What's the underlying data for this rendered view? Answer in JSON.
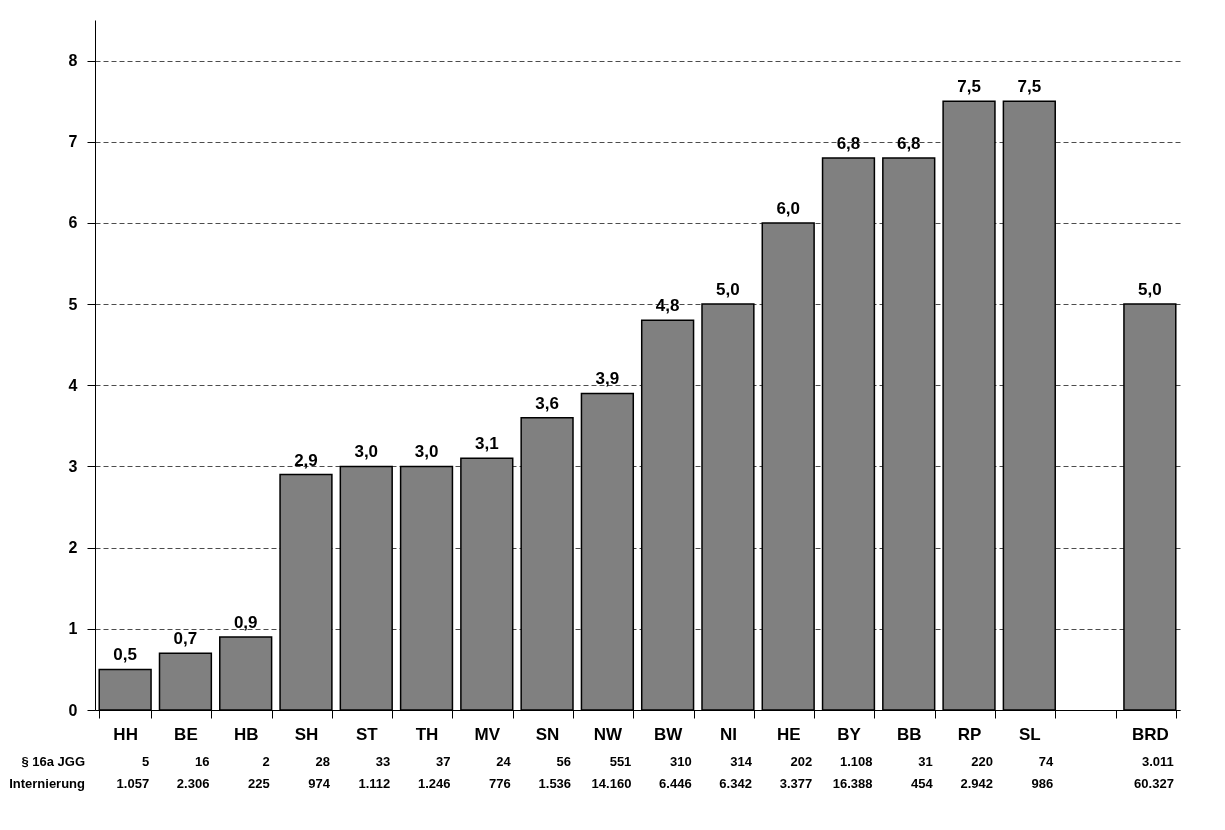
{
  "chart_data": {
    "type": "bar",
    "categories": [
      "HH",
      "BE",
      "HB",
      "SH",
      "ST",
      "TH",
      "MV",
      "SN",
      "NW",
      "BW",
      "NI",
      "HE",
      "BY",
      "BB",
      "RP",
      "SL",
      null,
      "BRD"
    ],
    "series": [
      {
        "color": "#808080",
        "values": [
          0.5,
          0.7,
          0.9,
          2.9,
          3.0,
          3.0,
          3.1,
          3.6,
          3.9,
          4.8,
          5.0,
          6.0,
          6.8,
          6.8,
          7.5,
          7.5,
          null,
          5.0
        ],
        "value_labels": [
          "0,5",
          "0,7",
          "0,9",
          "2,9",
          "3,0",
          "3,0",
          "3,1",
          "3,6",
          "3,9",
          "4,8",
          "5,0",
          "6,0",
          "6,8",
          "6,8",
          "7,5",
          "7,5",
          null,
          "5,0"
        ]
      }
    ],
    "ylim": [
      0,
      8.5
    ],
    "yticks": [
      0,
      1,
      2,
      3,
      4,
      5,
      6,
      7,
      8
    ],
    "grid": "y",
    "annotations": [
      "§ 16a JGG",
      "5",
      "16",
      "2",
      "28",
      "33",
      "37",
      "24",
      "56",
      "551",
      "310",
      "314",
      "202",
      "1.108",
      "31",
      "220",
      "74",
      "3.011",
      "Internierung",
      "1.057",
      "2.306",
      "225",
      "974",
      "1.112",
      "1.246",
      "776",
      "1.536",
      "14.160",
      "6.446",
      "6.342",
      "3.377",
      "16.388",
      "454",
      "2.942",
      "986",
      "60.327"
    ]
  }
}
